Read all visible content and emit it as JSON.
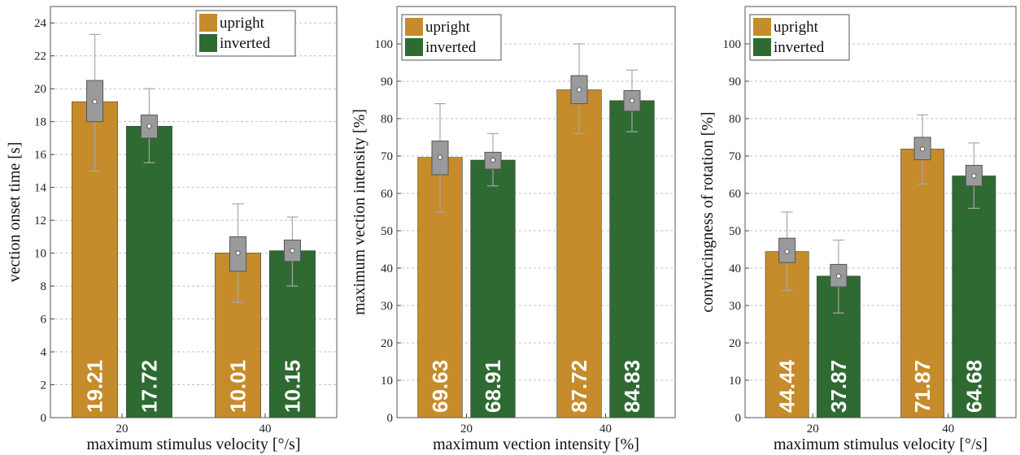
{
  "colors": {
    "upright": "#c68b2a",
    "inverted": "#2e6a32",
    "box": "#9a9a9a",
    "whisker": "#a8a8a8",
    "grid": "#c0c0c0"
  },
  "chart_data": [
    {
      "type": "bar",
      "categories": [
        "20",
        "40"
      ],
      "xlabel": "maximum stimulus velocity [°/s]",
      "ylabel": "vection onset time [s]",
      "ylim": [
        0,
        25
      ],
      "yticks": [
        0,
        2,
        4,
        6,
        8,
        10,
        12,
        14,
        16,
        18,
        20,
        22,
        24
      ],
      "grid": true,
      "legend": "top-right",
      "series": [
        {
          "name": "upright",
          "values": [
            19.21,
            10.01
          ],
          "value_labels": [
            "19.21",
            "10.01"
          ],
          "box_low": [
            18.0,
            8.9
          ],
          "box_high": [
            20.5,
            11.0
          ],
          "whisker_low": [
            15.0,
            7.0
          ],
          "whisker_high": [
            23.3,
            13.0
          ]
        },
        {
          "name": "inverted",
          "values": [
            17.72,
            10.15
          ],
          "value_labels": [
            "17.72",
            "10.15"
          ],
          "box_low": [
            17.0,
            9.5
          ],
          "box_high": [
            18.4,
            10.8
          ],
          "whisker_low": [
            15.5,
            8.0
          ],
          "whisker_high": [
            20.0,
            12.2
          ]
        }
      ]
    },
    {
      "type": "bar",
      "categories": [
        "20",
        "40"
      ],
      "xlabel": "maximum vection intensity [%]",
      "ylabel": "maximum vection intensity [%]",
      "ylim": [
        0,
        110
      ],
      "yticks": [
        0,
        10,
        20,
        30,
        40,
        50,
        60,
        70,
        80,
        90,
        100
      ],
      "grid": true,
      "legend": "top-left",
      "series": [
        {
          "name": "upright",
          "values": [
            69.63,
            87.72
          ],
          "value_labels": [
            "69.63",
            "87.72"
          ],
          "box_low": [
            65.0,
            84.0
          ],
          "box_high": [
            74.0,
            91.5
          ],
          "whisker_low": [
            55.0,
            76.0
          ],
          "whisker_high": [
            84.0,
            100.0
          ]
        },
        {
          "name": "inverted",
          "values": [
            68.91,
            84.83
          ],
          "value_labels": [
            "68.91",
            "84.83"
          ],
          "box_low": [
            66.5,
            82.0
          ],
          "box_high": [
            71.0,
            87.5
          ],
          "whisker_low": [
            62.0,
            76.5
          ],
          "whisker_high": [
            76.0,
            93.0
          ]
        }
      ]
    },
    {
      "type": "bar",
      "categories": [
        "20",
        "40"
      ],
      "xlabel": "maximum stimulus velocity [°/s]",
      "ylabel": "convincingness of rotation [%]",
      "ylim": [
        0,
        110
      ],
      "yticks": [
        0,
        10,
        20,
        30,
        40,
        50,
        60,
        70,
        80,
        90,
        100
      ],
      "grid": true,
      "legend": "top-left",
      "series": [
        {
          "name": "upright",
          "values": [
            44.44,
            71.87
          ],
          "value_labels": [
            "44.44",
            "71.87"
          ],
          "box_low": [
            41.5,
            69.0
          ],
          "box_high": [
            48.0,
            75.0
          ],
          "whisker_low": [
            34.0,
            62.5
          ],
          "whisker_high": [
            55.0,
            81.0
          ]
        },
        {
          "name": "inverted",
          "values": [
            37.87,
            64.68
          ],
          "value_labels": [
            "37.87",
            "64.68"
          ],
          "box_low": [
            35.0,
            62.0
          ],
          "box_high": [
            41.0,
            67.5
          ],
          "whisker_low": [
            28.0,
            56.0
          ],
          "whisker_high": [
            47.5,
            73.5
          ]
        }
      ]
    }
  ]
}
